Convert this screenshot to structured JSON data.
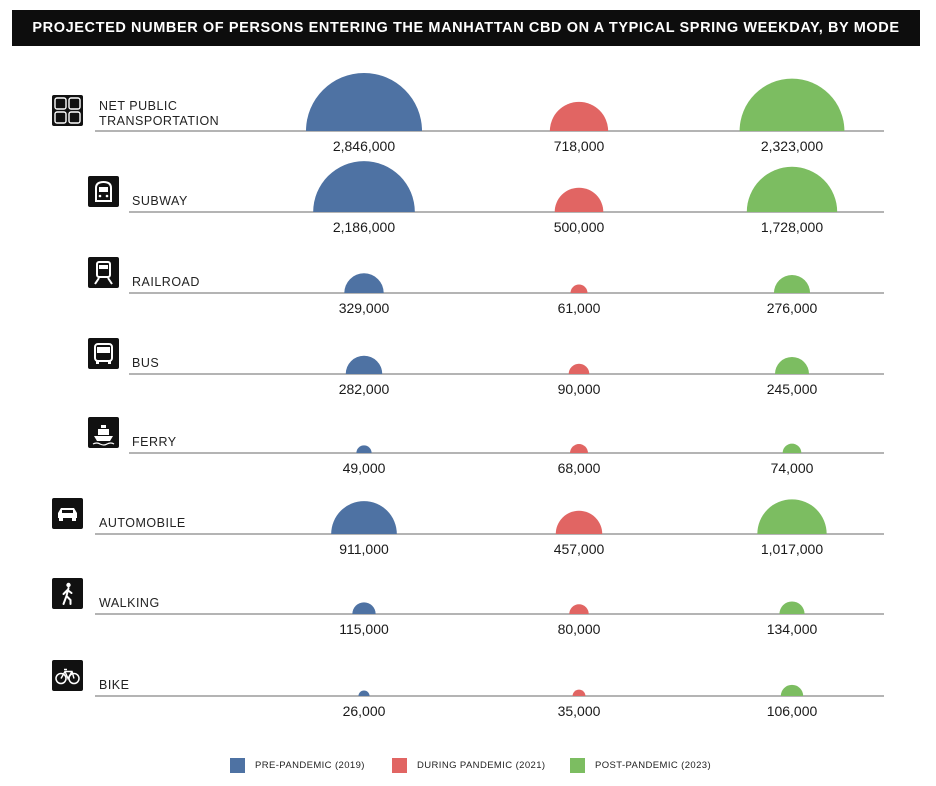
{
  "title": "PROJECTED NUMBER OF PERSONS ENTERING THE MANHATTAN CBD ON A TYPICAL SPRING WEEKDAY, BY MODE",
  "colors": {
    "pre": "#4e72a3",
    "during": "#e16563",
    "post": "#7cbd61",
    "axis": "#888888",
    "icon_bg": "#111111"
  },
  "legend": [
    {
      "label": "PRE-PANDEMIC (2019)",
      "color": "#4e72a3"
    },
    {
      "label": "DURING PANDEMIC (2021)",
      "color": "#e16563"
    },
    {
      "label": "POST-PANDEMIC (2023)",
      "color": "#7cbd61"
    }
  ],
  "chart_data": {
    "type": "bar",
    "title": "PROJECTED NUMBER OF PERSONS ENTERING THE MANHATTAN CBD ON A TYPICAL SPRING WEEKDAY, BY MODE",
    "encoding": "semicircle area proportional to value",
    "categories": [
      "NET PUBLIC TRANSPORTATION",
      "SUBWAY",
      "RAILROAD",
      "BUS",
      "FERRY",
      "AUTOMOBILE",
      "WALKING",
      "BIKE"
    ],
    "category_lines": [
      [
        "NET PUBLIC",
        "TRANSPORTATION"
      ],
      [
        "SUBWAY"
      ],
      [
        "RAILROAD"
      ],
      [
        "BUS"
      ],
      [
        "FERRY"
      ],
      [
        "AUTOMOBILE"
      ],
      [
        "WALKING"
      ],
      [
        "BIKE"
      ]
    ],
    "icons": [
      "transit-icon",
      "subway-icon",
      "railroad-icon",
      "bus-icon",
      "ferry-icon",
      "car-icon",
      "walking-icon",
      "bike-icon"
    ],
    "indented": [
      false,
      true,
      true,
      true,
      true,
      false,
      false,
      false
    ],
    "series": [
      {
        "name": "PRE-PANDEMIC (2019)",
        "values": [
          2846000,
          2186000,
          329000,
          282000,
          49000,
          911000,
          115000,
          26000
        ],
        "labels": [
          "2,846,000",
          "2,186,000",
          "329,000",
          "282,000",
          "49,000",
          "911,000",
          "115,000",
          "26,000"
        ]
      },
      {
        "name": "DURING PANDEMIC (2021)",
        "values": [
          718000,
          500000,
          61000,
          90000,
          68000,
          457000,
          80000,
          35000
        ],
        "labels": [
          "718,000",
          "500,000",
          "61,000",
          "90,000",
          "68,000",
          "457,000",
          "80,000",
          "35,000"
        ]
      },
      {
        "name": "POST-PANDEMIC (2023)",
        "values": [
          2323000,
          1728000,
          276000,
          245000,
          74000,
          1017000,
          134000,
          106000
        ],
        "labels": [
          "2,323,000",
          "1,728,000",
          "276,000",
          "245,000",
          "74,000",
          "1,017,000",
          "134,000",
          "106,000"
        ]
      }
    ]
  }
}
